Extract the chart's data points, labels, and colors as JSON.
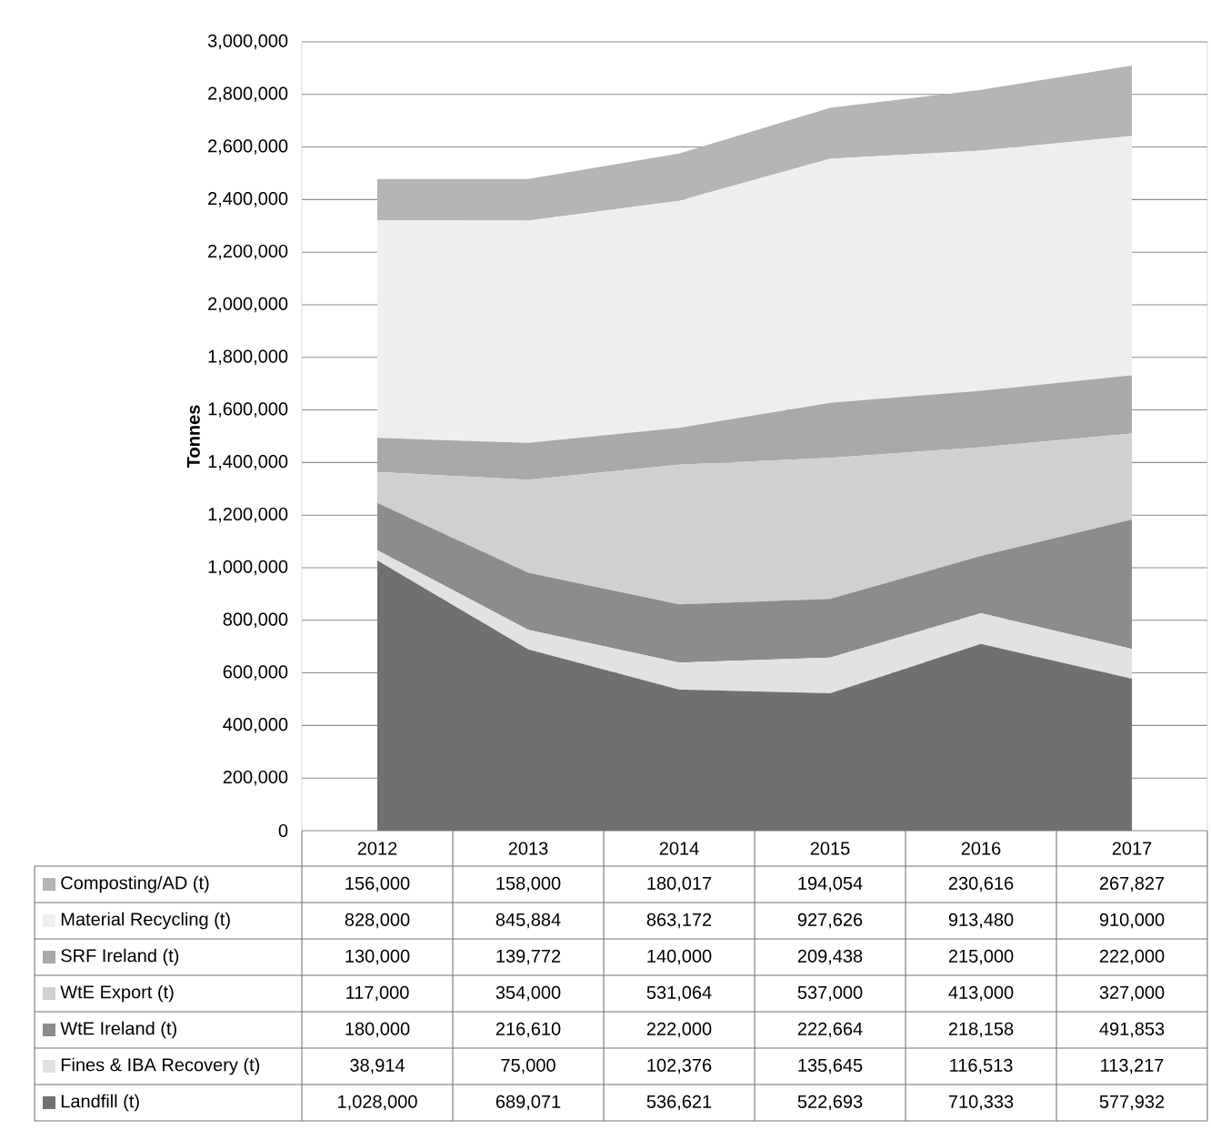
{
  "chart_data": {
    "type": "area",
    "stacked": true,
    "ylabel": "Tonnes",
    "categories": [
      "2012",
      "2013",
      "2014",
      "2015",
      "2016",
      "2017"
    ],
    "ylim": [
      0,
      3000000
    ],
    "yticks": [
      {
        "value": 0,
        "label": "0"
      },
      {
        "value": 200000,
        "label": "200,000"
      },
      {
        "value": 400000,
        "label": "400,000"
      },
      {
        "value": 600000,
        "label": "600,000"
      },
      {
        "value": 800000,
        "label": "800,000"
      },
      {
        "value": 1000000,
        "label": "1,000,000"
      },
      {
        "value": 1200000,
        "label": "1,200,000"
      },
      {
        "value": 1400000,
        "label": "1,400,000"
      },
      {
        "value": 1600000,
        "label": "1,600,000"
      },
      {
        "value": 1800000,
        "label": "1,800,000"
      },
      {
        "value": 2000000,
        "label": "2,000,000"
      },
      {
        "value": 2200000,
        "label": "2,200,000"
      },
      {
        "value": 2400000,
        "label": "2,400,000"
      },
      {
        "value": 2600000,
        "label": "2,600,000"
      },
      {
        "value": 2800000,
        "label": "2,800,000"
      },
      {
        "value": 3000000,
        "label": "3,000,000"
      }
    ],
    "grid": "y",
    "legend": "bottom",
    "series": [
      {
        "name": "Landfill (t)",
        "color": "#707070",
        "values": [
          1028000,
          689071,
          536621,
          522693,
          710333,
          577932
        ],
        "value_labels": [
          "1,028,000",
          "689,071",
          "536,621",
          "522,693",
          "710,333",
          "577,932"
        ]
      },
      {
        "name": "Fines & IBA Recovery (t)",
        "color": "#e2e2e2",
        "values": [
          38914,
          75000,
          102376,
          135645,
          116513,
          113217
        ],
        "value_labels": [
          "38,914",
          "75,000",
          "102,376",
          "135,645",
          "116,513",
          "113,217"
        ]
      },
      {
        "name": "WtE Ireland (t)",
        "color": "#8c8c8c",
        "values": [
          180000,
          216610,
          222000,
          222664,
          218158,
          491853
        ],
        "value_labels": [
          "180,000",
          "216,610",
          "222,000",
          "222,664",
          "218,158",
          "491,853"
        ]
      },
      {
        "name": "WtE Export (t)",
        "color": "#d0d0d0",
        "values": [
          117000,
          354000,
          531064,
          537000,
          413000,
          327000
        ],
        "value_labels": [
          "117,000",
          "354,000",
          "531,064",
          "537,000",
          "413,000",
          "327,000"
        ]
      },
      {
        "name": "SRF Ireland (t)",
        "color": "#a9a9a9",
        "values": [
          130000,
          139772,
          140000,
          209438,
          215000,
          222000
        ],
        "value_labels": [
          "130,000",
          "139,772",
          "140,000",
          "209,438",
          "215,000",
          "222,000"
        ]
      },
      {
        "name": "Material Recycling (t)",
        "color": "#eeeeee",
        "values": [
          828000,
          845884,
          863172,
          927626,
          913480,
          910000
        ],
        "value_labels": [
          "828,000",
          "845,884",
          "863,172",
          "927,626",
          "913,480",
          "910,000"
        ]
      },
      {
        "name": "Composting/AD (t)",
        "color": "#b5b5b5",
        "values": [
          156000,
          158000,
          180017,
          194054,
          230616,
          267827
        ],
        "value_labels": [
          "156,000",
          "158,000",
          "180,017",
          "194,054",
          "230,616",
          "267,827"
        ]
      }
    ]
  }
}
